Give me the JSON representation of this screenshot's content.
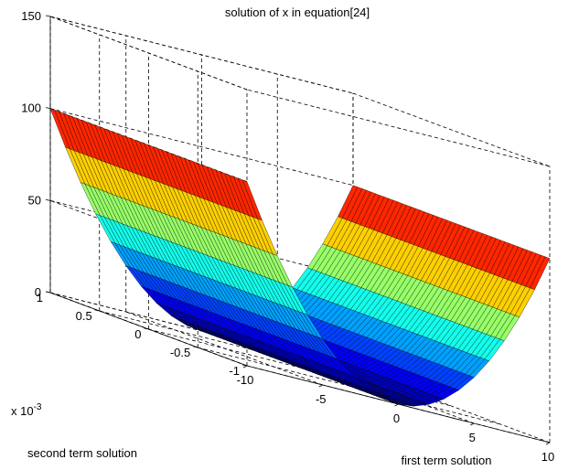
{
  "chart_data": {
    "type": "surface",
    "title": "solution of x in equation[24]",
    "xlabel": "first term solution",
    "ylabel": "second term solution",
    "ylabel_multiplier": "x 10",
    "ylabel_multiplier_exponent": "-3",
    "x": {
      "lim": [
        -10,
        10
      ],
      "ticks": [
        -10,
        -5,
        0,
        5,
        10
      ],
      "tick_labels": [
        "-10",
        "-5",
        "0",
        "5",
        "10"
      ]
    },
    "y": {
      "lim": [
        -1,
        1
      ],
      "ticks": [
        -1,
        -0.5,
        0,
        0.5,
        1
      ],
      "tick_labels": [
        "-1",
        "-0.5",
        "0",
        "0.5",
        "1"
      ]
    },
    "z": {
      "lim": [
        0,
        150
      ],
      "ticks": [
        0,
        50,
        100,
        150
      ],
      "tick_labels": [
        "0",
        "50",
        "100",
        "150"
      ]
    },
    "surface_function": "z = x^2 (constant along second term solution)",
    "samples": [
      {
        "x": -10,
        "z": 100
      },
      {
        "x": -7.5,
        "z": 56.25
      },
      {
        "x": -5,
        "z": 25
      },
      {
        "x": -2.5,
        "z": 6.25
      },
      {
        "x": 0,
        "z": 0
      },
      {
        "x": 2.5,
        "z": 6.25
      },
      {
        "x": 5,
        "z": 25
      },
      {
        "x": 7.5,
        "z": 56.25
      },
      {
        "x": 10,
        "z": 100
      }
    ],
    "colormap": "jet",
    "grid": true,
    "box": true
  }
}
